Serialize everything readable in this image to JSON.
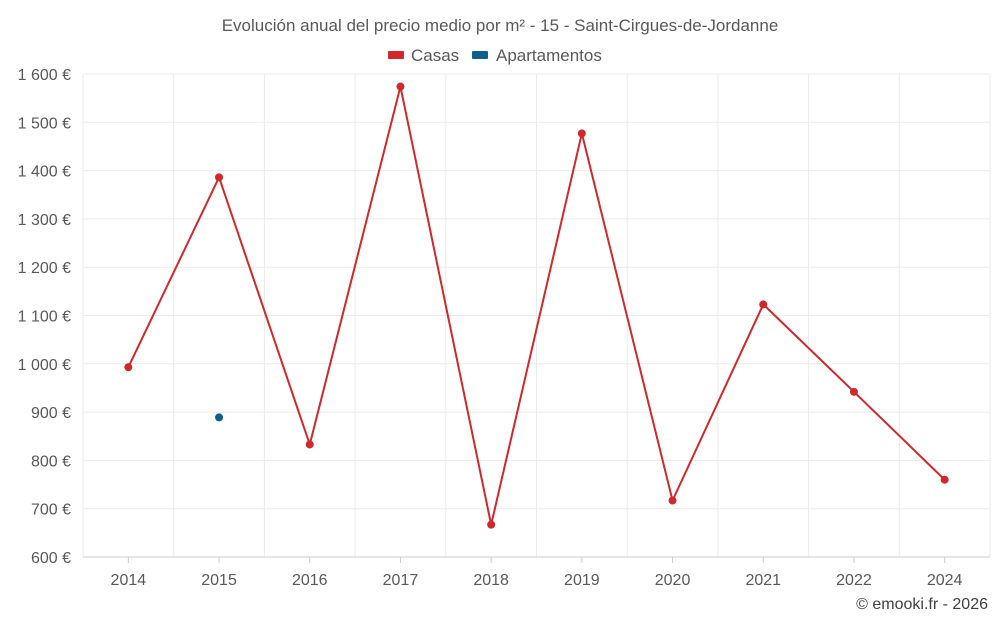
{
  "chart_data": {
    "type": "line",
    "title": "Evolución anual del precio medio por m² - 15 - Saint-Cirgues-de-Jordanne",
    "categories": [
      "2014",
      "2015",
      "2016",
      "2017",
      "2018",
      "2019",
      "2020",
      "2021",
      "2022",
      "2024"
    ],
    "ylim": [
      600,
      1600
    ],
    "yticks": [
      600,
      700,
      800,
      900,
      1000,
      1100,
      1200,
      1300,
      1400,
      1500,
      1600
    ],
    "ytick_labels": [
      "600 €",
      "700 €",
      "800 €",
      "900 €",
      "1 000 €",
      "1 100 €",
      "1 200 €",
      "1 300 €",
      "1 400 €",
      "1 500 €",
      "1 600 €"
    ],
    "grid": true,
    "legend_position": "top-center",
    "series": [
      {
        "name": "Casas",
        "color": "#d0282b",
        "values": [
          993,
          1386,
          833,
          1574,
          667,
          1477,
          717,
          1123,
          942,
          760
        ]
      },
      {
        "name": "Apartamentos",
        "color": "#0e5f8a",
        "values": [
          null,
          889,
          null,
          null,
          null,
          null,
          null,
          null,
          null,
          null
        ]
      }
    ],
    "credit": "© emooki.fr - 2026"
  }
}
